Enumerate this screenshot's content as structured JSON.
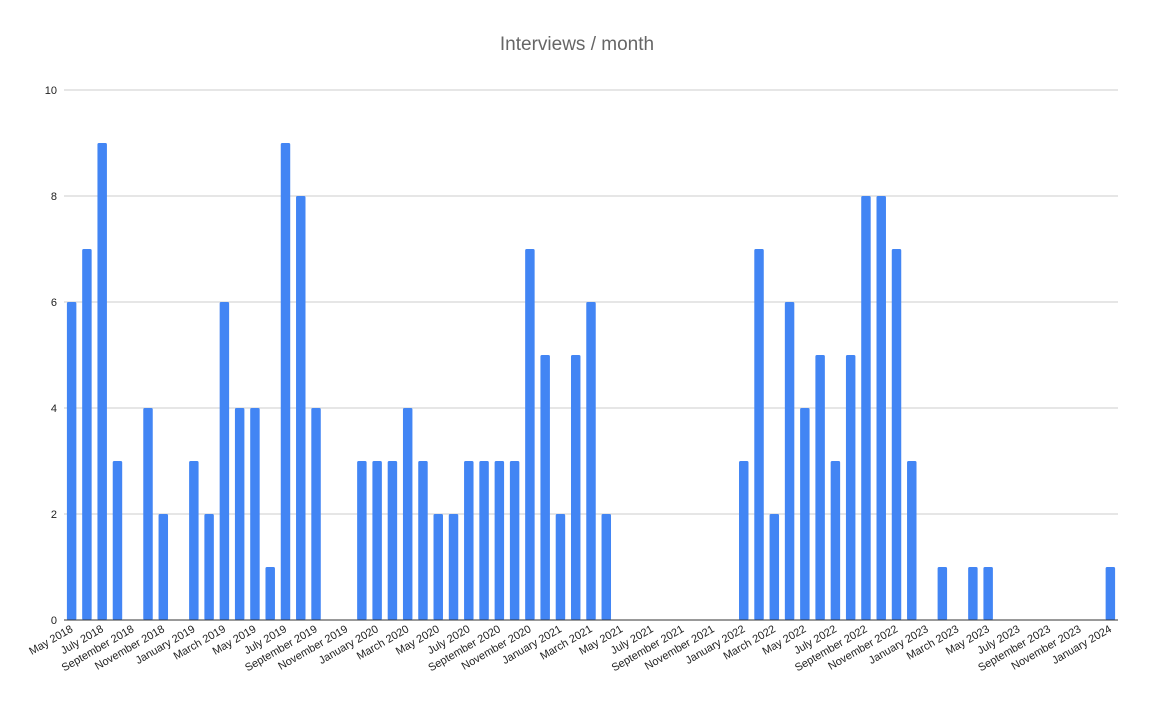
{
  "chart_data": {
    "type": "bar",
    "title": "Interviews / month",
    "xlabel": "",
    "ylabel": "",
    "ylim": [
      0,
      10
    ],
    "yticks": [
      0,
      2,
      4,
      6,
      8,
      10
    ],
    "grid": true,
    "legend": "none",
    "bar_color": "#4285F4",
    "categories": [
      "May 2018",
      "June 2018",
      "July 2018",
      "August 2018",
      "September 2018",
      "October 2018",
      "November 2018",
      "December 2018",
      "January 2019",
      "February 2019",
      "March 2019",
      "April 2019",
      "May 2019",
      "June 2019",
      "July 2019",
      "August 2019",
      "September 2019",
      "October 2019",
      "November 2019",
      "December 2019",
      "January 2020",
      "February 2020",
      "March 2020",
      "April 2020",
      "May 2020",
      "June 2020",
      "July 2020",
      "August 2020",
      "September 2020",
      "October 2020",
      "November 2020",
      "December 2020",
      "January 2021",
      "February 2021",
      "March 2021",
      "April 2021",
      "May 2021",
      "June 2021",
      "July 2021",
      "August 2021",
      "September 2021",
      "October 2021",
      "November 2021",
      "December 2021",
      "January 2022",
      "February 2022",
      "March 2022",
      "April 2022",
      "May 2022",
      "June 2022",
      "July 2022",
      "August 2022",
      "September 2022",
      "October 2022",
      "November 2022",
      "December 2022",
      "January 2023",
      "February 2023",
      "March 2023",
      "April 2023",
      "May 2023",
      "June 2023",
      "July 2023",
      "August 2023",
      "September 2023",
      "October 2023",
      "November 2023",
      "December 2023",
      "January 2024"
    ],
    "tick_labels": [
      "May 2018",
      "July 2018",
      "September 2018",
      "November 2018",
      "January 2019",
      "March 2019",
      "May 2019",
      "July 2019",
      "September 2019",
      "November 2019",
      "January 2020",
      "March 2020",
      "May 2020",
      "July 2020",
      "September 2020",
      "November 2020",
      "January 2021",
      "March 2021",
      "May 2021",
      "July 2021",
      "September 2021",
      "November 2021",
      "January 2022",
      "March 2022",
      "May 2022",
      "July 2022",
      "September 2022",
      "November 2022",
      "January 2023",
      "March 2023",
      "May 2023",
      "July 2023",
      "September 2023",
      "November 2023",
      "January 2024"
    ],
    "values": [
      6,
      7,
      9,
      3,
      0,
      4,
      2,
      0,
      3,
      2,
      6,
      4,
      4,
      1,
      9,
      8,
      4,
      0,
      0,
      3,
      3,
      3,
      4,
      3,
      2,
      2,
      3,
      3,
      3,
      3,
      7,
      5,
      2,
      5,
      6,
      2,
      0,
      0,
      0,
      0,
      0,
      0,
      0,
      0,
      3,
      7,
      2,
      6,
      4,
      5,
      3,
      5,
      8,
      8,
      7,
      3,
      0,
      1,
      0,
      1,
      1,
      0,
      0,
      0,
      0,
      0,
      0,
      0,
      1
    ]
  }
}
